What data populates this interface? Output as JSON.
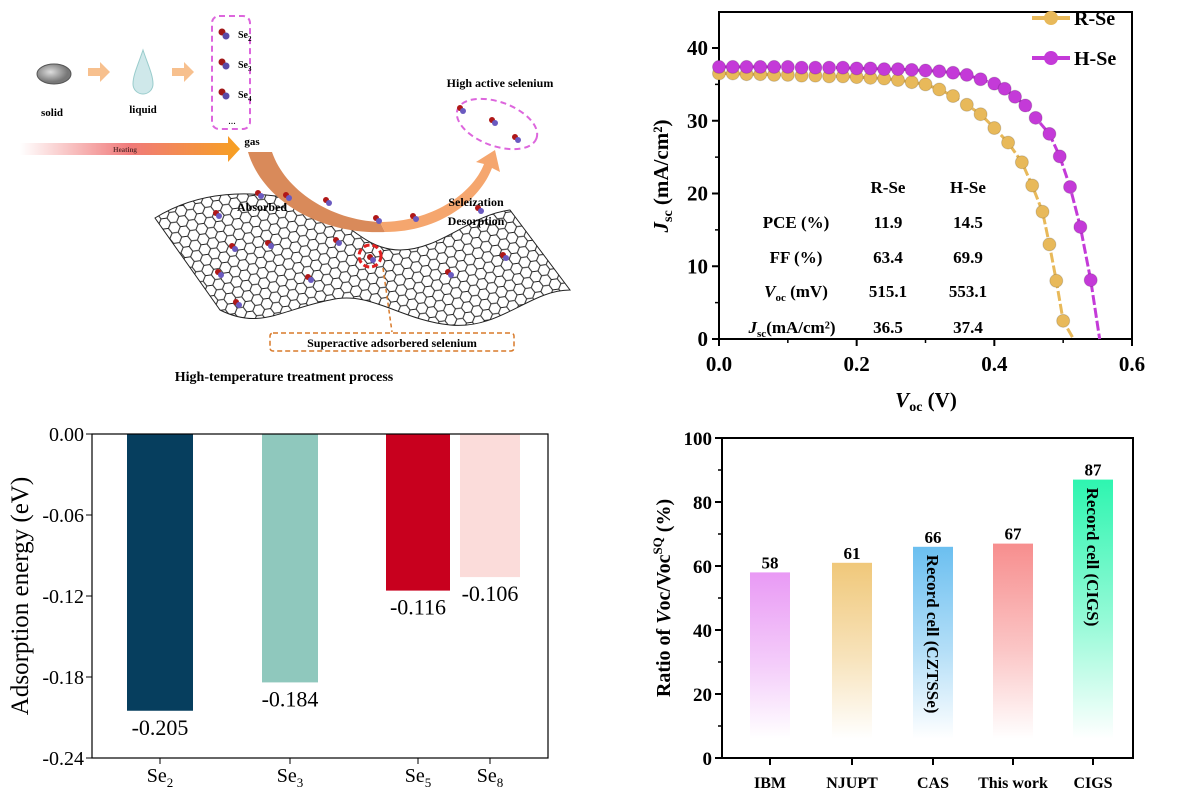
{
  "diagram": {
    "title": "High-temperature treatment process",
    "solid": "solid",
    "liquid": "liquid",
    "gas": "gas",
    "species": [
      {
        "base": "Se",
        "sub": "2"
      },
      {
        "base": "Se",
        "sub": "3"
      },
      {
        "base": "Se",
        "sub": "4"
      }
    ],
    "ellipsis": "...",
    "heating": "Heating",
    "absorbed": "Absorbed",
    "selenization": "Seleization",
    "desorption": "Desorption",
    "high_active": "High active selenium",
    "superactive": "Superactive adsorbered selenium"
  },
  "chart_data": [
    {
      "type": "line",
      "xlabel": {
        "base": "V",
        "sub": "oc",
        "rest": " (V)"
      },
      "ylabel": {
        "base": "J",
        "sub": "sc",
        "rest": " (mA/cm²)"
      },
      "xlim": [
        0,
        0.6
      ],
      "ylim": [
        0,
        45
      ],
      "xticks": [
        "0.0",
        "0.2",
        "0.4",
        "0.6"
      ],
      "yticks": [
        "0",
        "10",
        "20",
        "30",
        "40"
      ],
      "legend_position": "top-right",
      "series": [
        {
          "name": "R-Se",
          "color": "#e8b95a",
          "x": [
            0,
            0.02,
            0.04,
            0.06,
            0.08,
            0.1,
            0.12,
            0.14,
            0.16,
            0.18,
            0.2,
            0.22,
            0.24,
            0.26,
            0.28,
            0.3,
            0.32,
            0.34,
            0.36,
            0.38,
            0.4,
            0.42,
            0.44,
            0.455,
            0.47,
            0.48,
            0.49,
            0.5,
            0.515
          ],
          "y": [
            36.5,
            36.5,
            36.4,
            36.4,
            36.3,
            36.3,
            36.2,
            36.2,
            36.1,
            36.1,
            36,
            35.9,
            35.8,
            35.6,
            35.3,
            35,
            34.3,
            33.4,
            32.2,
            30.9,
            29,
            27,
            24.3,
            21.1,
            17.5,
            13,
            8,
            2.5,
            0
          ]
        },
        {
          "name": "H-Se",
          "color": "#c43ad8",
          "x": [
            0,
            0.02,
            0.04,
            0.06,
            0.08,
            0.1,
            0.12,
            0.14,
            0.16,
            0.18,
            0.2,
            0.22,
            0.24,
            0.26,
            0.28,
            0.3,
            0.32,
            0.34,
            0.36,
            0.38,
            0.4,
            0.415,
            0.43,
            0.445,
            0.46,
            0.48,
            0.495,
            0.51,
            0.525,
            0.54,
            0.553
          ],
          "y": [
            37.4,
            37.4,
            37.4,
            37.4,
            37.4,
            37.4,
            37.3,
            37.3,
            37.3,
            37.3,
            37.2,
            37.2,
            37.1,
            37.1,
            37,
            36.9,
            36.8,
            36.6,
            36.3,
            35.7,
            35.1,
            34.4,
            33.3,
            32.1,
            30.4,
            28.2,
            25.1,
            20.9,
            15.4,
            8.1,
            0
          ]
        }
      ],
      "table": {
        "headers": [
          "",
          "R-Se",
          "H-Se"
        ],
        "rows": [
          {
            "label": "PCE (%)",
            "r": "11.9",
            "h": "14.5"
          },
          {
            "label": "FF (%)",
            "r": "63.4",
            "h": "69.9"
          },
          {
            "label_base": "V",
            "label_sub": "oc",
            "label_rest": " (mV)",
            "r": "515.1",
            "h": "553.1"
          },
          {
            "label_base": "J",
            "label_sub": "sc",
            "label_rest": "(mA/cm²)",
            "r": "36.5",
            "h": "37.4"
          }
        ]
      }
    },
    {
      "type": "bar",
      "ylabel": "Adsorption energy (eV)",
      "ylim": [
        -0.24,
        0
      ],
      "yticks": [
        "0.00",
        "-0.06",
        "-0.12",
        "-0.18",
        "-0.24"
      ],
      "categories": [
        {
          "base": "Se",
          "sub": "2"
        },
        {
          "base": "Se",
          "sub": "3"
        },
        {
          "base": "Se",
          "sub": "5"
        },
        {
          "base": "Se",
          "sub": "8"
        }
      ],
      "values": [
        -0.205,
        -0.184,
        -0.116,
        -0.106
      ],
      "labels": [
        "-0.205",
        "-0.184",
        "-0.116",
        "-0.106"
      ],
      "colors": [
        "#063e5e",
        "#8fc8bd",
        "#c8001e",
        "#fbdcda"
      ]
    },
    {
      "type": "bar",
      "ylabel": {
        "pre": "Ratio of ",
        "italic": "V",
        "mid": "oc/Voc",
        "sup": "SQ",
        "rest": "  (%)"
      },
      "ylim": [
        0,
        100
      ],
      "yticks": [
        "0",
        "20",
        "40",
        "60",
        "80",
        "100"
      ],
      "categories": [
        "IBM",
        "NJUPT",
        "CAS",
        "This work",
        "CIGS"
      ],
      "values": [
        58,
        61,
        66,
        67,
        87
      ],
      "labels": [
        "58",
        "61",
        "66",
        "67",
        "87"
      ],
      "inner_labels": [
        "",
        "",
        "Record cell (CZTSSe)",
        "",
        "Record cell (CIGS)"
      ],
      "colors": [
        "#e99af5",
        "#f0c87a",
        "#6bbff0",
        "#f78e8e",
        "#2ef5b0"
      ]
    }
  ]
}
